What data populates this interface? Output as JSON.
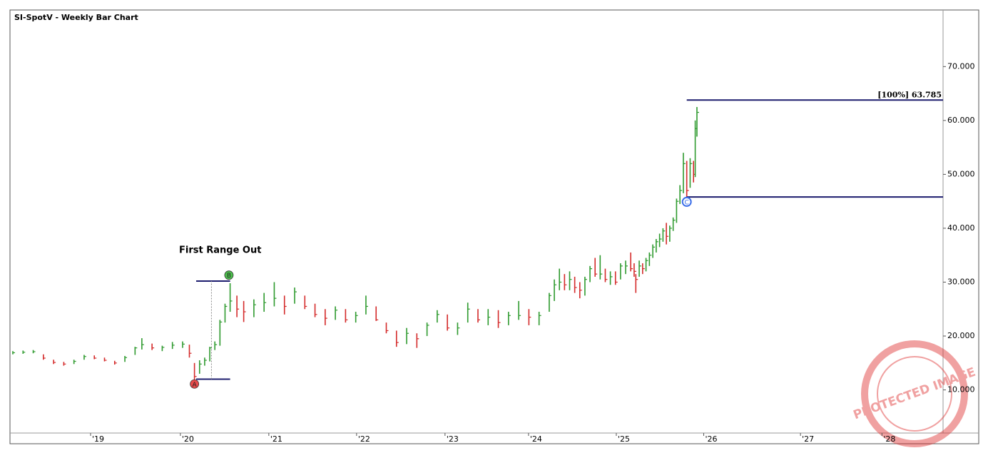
{
  "chart_data": {
    "type": "hlc_bar",
    "title": "SI-SpotV - Weekly Bar Chart",
    "annotation": "First Range Out",
    "watermark": "PROTECTED IMAGE",
    "up_color": "#2e9a2e",
    "down_color": "#d42a2a",
    "level_color": "#1c1c6e",
    "xlim": [
      0,
      548
    ],
    "ylim": [
      2,
      80.5
    ],
    "yticks": [
      {
        "value": 10,
        "label": "10.000"
      },
      {
        "value": 20,
        "label": "20.000"
      },
      {
        "value": 30,
        "label": "30.000"
      },
      {
        "value": 40,
        "label": "40.000"
      },
      {
        "value": 50,
        "label": "50.000"
      },
      {
        "value": 60,
        "label": "60.000"
      },
      {
        "value": 70,
        "label": "70.000"
      }
    ],
    "xticks": [
      {
        "value": 45.8,
        "label": "'19"
      },
      {
        "value": 98.7,
        "label": "'20"
      },
      {
        "value": 150.8,
        "label": "'21"
      },
      {
        "value": 202.5,
        "label": "'22"
      },
      {
        "value": 254.6,
        "label": "'23"
      },
      {
        "value": 303.8,
        "label": "'24"
      },
      {
        "value": 355.5,
        "label": "'25"
      },
      {
        "value": 407,
        "label": "'26"
      },
      {
        "value": 464,
        "label": "'27"
      },
      {
        "value": 512,
        "label": "'28"
      }
    ],
    "x": [
      0,
      6,
      12,
      18,
      24,
      30,
      36,
      42,
      48,
      54,
      60,
      66,
      72,
      76,
      82,
      88,
      94,
      100,
      104,
      107,
      110,
      113,
      116,
      119,
      122,
      125,
      128,
      132,
      136,
      142,
      148,
      154,
      160,
      166,
      172,
      178,
      184,
      190,
      196,
      202,
      208,
      214,
      220,
      226,
      232,
      238,
      244,
      250,
      256,
      262,
      268,
      274,
      280,
      286,
      292,
      298,
      304,
      310,
      316,
      319,
      322,
      325,
      328,
      331,
      334,
      337,
      340,
      343,
      346,
      349,
      352,
      355,
      358,
      361,
      364,
      366,
      367,
      369,
      371,
      373,
      375,
      377,
      379,
      381,
      383,
      385,
      387,
      389,
      391,
      393,
      395,
      397,
      399,
      401,
      402,
      403
    ],
    "high": [
      17.2,
      17.3,
      17.4,
      16.6,
      15.6,
      15.2,
      15.6,
      16.5,
      16.4,
      16.0,
      15.4,
      16.3,
      18.0,
      19.6,
      18.6,
      18.2,
      18.9,
      19.0,
      18.4,
      15.0,
      15.5,
      16.0,
      18.0,
      19.0,
      23.0,
      26.0,
      29.8,
      27.5,
      26.5,
      26.8,
      28.0,
      30.0,
      27.5,
      29.0,
      27.5,
      26.0,
      25.0,
      25.5,
      25.0,
      24.5,
      27.5,
      25.5,
      22.5,
      21.0,
      21.5,
      20.5,
      22.5,
      24.8,
      24.0,
      22.5,
      26.2,
      25.0,
      25.0,
      24.8,
      24.5,
      26.5,
      25.0,
      24.5,
      28.0,
      30.5,
      32.5,
      31.5,
      32.0,
      31.0,
      30.0,
      31.0,
      33.0,
      34.5,
      35.0,
      32.5,
      32.0,
      32.0,
      33.5,
      34.0,
      35.5,
      33.5,
      31.5,
      34.0,
      33.5,
      34.5,
      35.5,
      37.0,
      38.0,
      39.0,
      40.0,
      41.0,
      40.5,
      42.0,
      45.5,
      48.0,
      54.0,
      52.5,
      53.0,
      52.5,
      60.0,
      62.5
    ],
    "low": [
      16.6,
      16.7,
      16.8,
      15.6,
      14.8,
      14.5,
      14.8,
      15.6,
      15.7,
      15.3,
      14.7,
      15.2,
      16.5,
      17.5,
      17.4,
      17.2,
      17.6,
      17.8,
      16.0,
      11.8,
      13.0,
      14.5,
      15.3,
      17.4,
      18.2,
      22.5,
      24.5,
      23.5,
      22.6,
      23.5,
      24.5,
      25.5,
      24.0,
      26.0,
      25.0,
      23.5,
      22.0,
      23.0,
      22.5,
      22.5,
      24.0,
      22.8,
      20.5,
      18.0,
      18.5,
      17.8,
      20.0,
      22.5,
      21.0,
      20.2,
      22.5,
      22.5,
      22.0,
      21.5,
      22.0,
      23.0,
      22.0,
      22.0,
      24.5,
      26.5,
      28.5,
      28.5,
      28.5,
      28.0,
      27.0,
      27.5,
      30.0,
      31.0,
      30.5,
      30.0,
      29.5,
      29.5,
      30.5,
      31.5,
      32.0,
      31.0,
      28.0,
      31.0,
      31.5,
      32.0,
      33.0,
      34.5,
      35.5,
      36.5,
      37.5,
      37.0,
      37.5,
      39.5,
      41.0,
      44.5,
      46.5,
      45.5,
      47.5,
      48.5,
      49.5,
      57.0
    ],
    "close": [
      16.9,
      17.0,
      17.1,
      15.9,
      15.1,
      14.8,
      15.3,
      16.2,
      15.9,
      15.5,
      15.0,
      16.0,
      17.8,
      18.4,
      17.8,
      17.9,
      18.3,
      18.5,
      16.8,
      12.5,
      14.8,
      15.5,
      17.8,
      18.4,
      22.6,
      25.5,
      26.5,
      25.0,
      24.5,
      25.8,
      26.2,
      27.0,
      25.5,
      28.2,
      25.5,
      24.0,
      23.3,
      24.8,
      23.0,
      23.8,
      25.5,
      23.0,
      21.0,
      18.8,
      20.5,
      19.5,
      22.0,
      24.0,
      21.5,
      21.5,
      25.0,
      23.0,
      23.5,
      22.5,
      23.8,
      23.8,
      23.5,
      23.8,
      27.5,
      29.5,
      30.0,
      29.5,
      30.5,
      29.0,
      28.5,
      30.5,
      32.5,
      31.5,
      31.5,
      30.5,
      31.0,
      30.0,
      33.0,
      33.0,
      32.5,
      32.0,
      30.5,
      33.0,
      32.5,
      34.0,
      35.0,
      36.5,
      37.5,
      38.0,
      39.5,
      38.5,
      40.0,
      41.5,
      45.0,
      47.0,
      52.0,
      47.0,
      52.0,
      50.0,
      58.5,
      61.5
    ],
    "points": [
      {
        "label": "A",
        "x": 107,
        "y": 11.1
      },
      {
        "label": "B",
        "x": 127.3,
        "y": 31.3
      },
      {
        "label": "C",
        "x": 397,
        "y": 44.9
      }
    ],
    "levels": [
      {
        "x": [
          108,
          128
        ],
        "y": [
          30.2,
          30.2
        ],
        "style": "solid"
      },
      {
        "x": [
          108,
          128
        ],
        "y": [
          12.0,
          12.0
        ],
        "style": "solid"
      },
      {
        "x": [
          117,
          117
        ],
        "y": [
          12.0,
          30.2
        ],
        "style": "dotted"
      },
      {
        "x": [
          397,
          548
        ],
        "y": [
          45.8,
          45.8
        ],
        "style": "solid"
      },
      {
        "x": [
          397,
          548
        ],
        "y": [
          63.785,
          63.785
        ],
        "style": "solid",
        "label": "[100%] 63.785"
      }
    ]
  }
}
